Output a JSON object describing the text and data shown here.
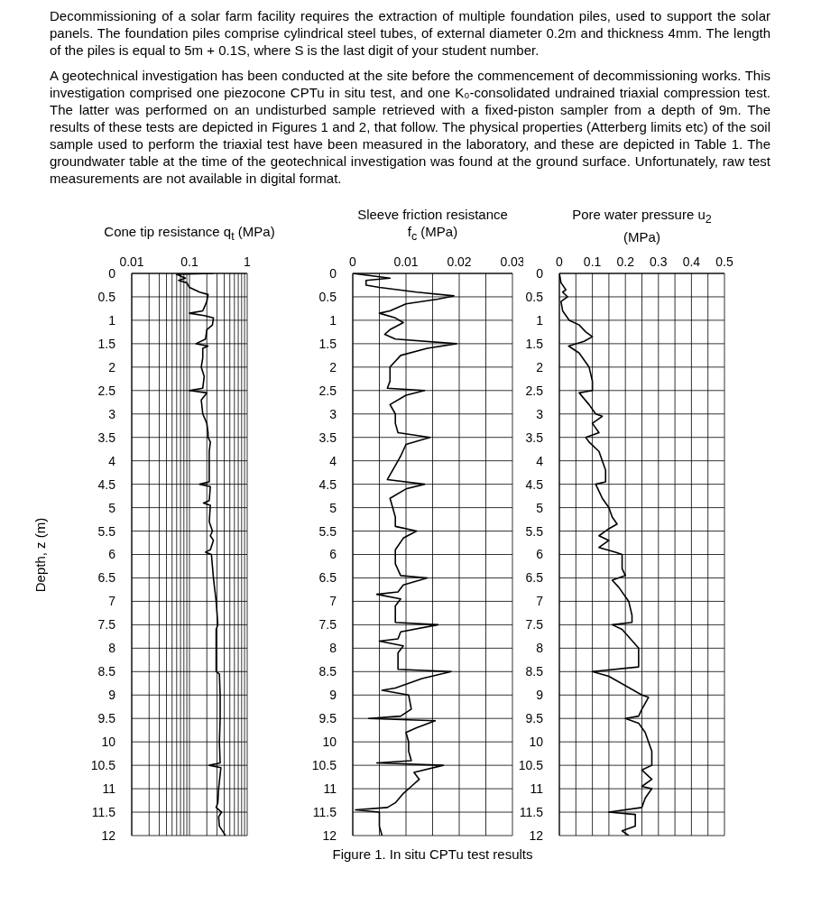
{
  "chart_data": [
    {
      "type": "line",
      "xlabel": "Cone tip resistance q$_{t}$ (MPa)",
      "ylabel": "Depth, z (m)",
      "log": "x",
      "grid": true,
      "marker": "none",
      "annotations": [
        "Decommissioning of a solar farm facility requires the extraction of multiple foundation piles, used to support the solar panels. The foundation piles comprise cylindrical steel tubes, of external diameter 0.2m and thickness 4mm. The length of the piles is equal to 5m + 0.1S, where S is the last digit of your student number.",
        "A geotechnical investigation has been conducted at the site before the commencement of decommissioning works. This investigation comprised one piezocone CPTu in situ test, and one K₀-consolidated undrained triaxial compression test. The latter was performed on an undisturbed sample retrieved with a fixed-piston sampler from a depth of 9m. The results of these tests are depicted in Figures 1 and 2, that follow. The physical properties (Atterberg limits etc) of the soil sample used to perform the triaxial test have been measured in the laboratory, and these are depicted in Table 1. The groundwater table at the time of the geotechnical investigation was found at the ground surface. Unfortunately, raw test measurements are not available in digital format."
      ],
      "xlim": [
        0.01,
        1
      ],
      "xticks": [
        0.01,
        {
          "value": 0.02,
          "label": null
        },
        {
          "value": 0.03,
          "label": null
        },
        {
          "value": 0.04,
          "label": null
        },
        {
          "value": 0.05,
          "label": null
        },
        {
          "value": 0.06,
          "label": null
        },
        {
          "value": 0.07,
          "label": null
        },
        {
          "value": 0.08,
          "label": null
        },
        {
          "value": 0.09,
          "label": null
        },
        0.1,
        {
          "value": 0.2,
          "label": null
        },
        {
          "value": 0.3,
          "label": null
        },
        {
          "value": 0.4,
          "label": null
        },
        {
          "value": 0.5,
          "label": null
        },
        {
          "value": 0.6,
          "label": null
        },
        {
          "value": 0.7,
          "label": null
        },
        {
          "value": 0.8,
          "label": null
        },
        {
          "value": 0.9,
          "label": null
        },
        1
      ],
      "ylim": [
        12,
        0
      ],
      "yticks": [
        0,
        0.5,
        1,
        1.5,
        2,
        2.5,
        3,
        3.5,
        4,
        4.5,
        5,
        5.5,
        6,
        6.5,
        7,
        7.5,
        8,
        8.5,
        9,
        9.5,
        10,
        10.5,
        11,
        11.5,
        12
      ],
      "series": [
        {
          "color": "#000000",
          "x": [
            0.26,
            0.06,
            0.085,
            0.065,
            0.09,
            0.1,
            0.15,
            0.21,
            0.2,
            0.17,
            0.1,
            0.18,
            0.26,
            0.25,
            0.2,
            0.19,
            0.13,
            0.21,
            0.17,
            0.17,
            0.16,
            0.18,
            0.17,
            0.1,
            0.2,
            0.16,
            0.17,
            0.2,
            0.21,
            0.21,
            0.23,
            0.22,
            0.22,
            0.22,
            0.15,
            0.23,
            0.22,
            0.175,
            0.23,
            0.22,
            0.25,
            0.23,
            0.26,
            0.23,
            0.19,
            0.24,
            0.26,
            0.29,
            0.31,
            0.29,
            0.29,
            0.29,
            0.33,
            0.34,
            0.34,
            0.33,
            0.34,
            0.22,
            0.35,
            0.32,
            0.31,
            0.29,
            0.36,
            0.32,
            0.33,
            0.42
          ],
          "values": [
            0,
            0.02,
            0.1,
            0.15,
            0.2,
            0.3,
            0.4,
            0.45,
            0.6,
            0.8,
            0.85,
            0.9,
            0.95,
            1.1,
            1.2,
            1.4,
            1.5,
            1.55,
            1.6,
            1.8,
            2,
            2.2,
            2.45,
            2.5,
            2.55,
            2.7,
            3,
            3.2,
            3.4,
            3.5,
            3.6,
            3.8,
            4,
            4.45,
            4.5,
            4.55,
            4.85,
            4.9,
            4.95,
            5.3,
            5.5,
            5.6,
            5.7,
            5.9,
            5.95,
            6,
            6.5,
            7,
            7.5,
            7.6,
            8,
            8.5,
            8.55,
            9,
            9.5,
            10,
            10.45,
            10.5,
            10.55,
            11,
            11.3,
            11.4,
            11.5,
            11.6,
            11.8,
            12
          ]
        }
      ]
    },
    {
      "type": "line",
      "xlabel": "Sleeve friction resistance f$_{c}$ (MPa)",
      "grid": true,
      "marker": "none",
      "annotations": [
        "Figure 1. In situ CPTu test results"
      ],
      "xlim": [
        0,
        0.03
      ],
      "xticks": [
        0,
        {
          "value": 0.005,
          "label": null
        },
        0.01,
        {
          "value": 0.015,
          "label": null
        },
        0.02,
        {
          "value": 0.025,
          "label": null
        },
        0.03
      ],
      "ylim": [
        12,
        0
      ],
      "yticks": [
        0,
        0.5,
        1,
        1.5,
        2,
        2.5,
        3,
        3.5,
        4,
        4.5,
        5,
        5.5,
        6,
        6.5,
        7,
        7.5,
        8,
        8.5,
        9,
        9.5,
        10,
        10.5,
        11,
        11.5,
        12
      ],
      "series": [
        {
          "color": "#000000",
          "x": [
            0,
            0.007,
            0.0025,
            0.0025,
            0.005,
            0.012,
            0.019,
            0.016,
            0.01,
            0.007,
            0.005,
            0.008,
            0.0095,
            0.007,
            0.006,
            0.008,
            0.0195,
            0.014,
            0.009,
            0.007,
            0.007,
            0.0065,
            0.0135,
            0.01,
            0.007,
            0.008,
            0.008,
            0.0085,
            0.0145,
            0.01,
            0.009,
            0.008,
            0.0065,
            0.0135,
            0.01,
            0.007,
            0.0075,
            0.008,
            0.008,
            0.012,
            0.0095,
            0.008,
            0.008,
            0.009,
            0.014,
            0.0095,
            0.0085,
            0.0045,
            0.009,
            0.008,
            0.008,
            0.016,
            0.009,
            0.0085,
            0.005,
            0.0095,
            0.0085,
            0.0085,
            0.0185,
            0.013,
            0.008,
            0.0055,
            0.0105,
            0.011,
            0.009,
            0.003,
            0.0155,
            0.012,
            0.01,
            0.0105,
            0.0105,
            0.011,
            0.0045,
            0.017,
            0.0115,
            0.0125,
            0.011,
            0.0095,
            0.008,
            0.0065,
            0.0005,
            0.005,
            0.005,
            0.0055
          ],
          "values": [
            0,
            0.1,
            0.15,
            0.25,
            0.3,
            0.4,
            0.48,
            0.55,
            0.65,
            0.8,
            0.85,
            0.95,
            1.05,
            1.2,
            1.3,
            1.4,
            1.5,
            1.6,
            1.75,
            2,
            2.3,
            2.45,
            2.5,
            2.6,
            2.8,
            3,
            3.2,
            3.4,
            3.5,
            3.65,
            3.9,
            4.1,
            4.4,
            4.5,
            4.6,
            4.8,
            5,
            5.2,
            5.4,
            5.5,
            5.65,
            5.9,
            6.2,
            6.45,
            6.5,
            6.65,
            6.8,
            6.85,
            6.95,
            7.1,
            7.45,
            7.5,
            7.65,
            7.8,
            7.85,
            7.95,
            8.1,
            8.45,
            8.5,
            8.65,
            8.85,
            8.9,
            9,
            9.3,
            9.45,
            9.5,
            9.55,
            9.7,
            9.8,
            10,
            10.2,
            10.4,
            10.45,
            10.5,
            10.65,
            10.8,
            10.95,
            11.1,
            11.3,
            11.4,
            11.45,
            11.5,
            11.8,
            12
          ]
        }
      ]
    },
    {
      "type": "line",
      "xlabel": "Pore water pressure u$_{2}$ (MPa)",
      "grid": true,
      "marker": "none",
      "xlim": [
        0,
        0.5
      ],
      "xticks": [
        0,
        {
          "value": 0.05,
          "label": null
        },
        0.1,
        {
          "value": 0.15,
          "label": null
        },
        0.2,
        {
          "value": 0.25,
          "label": null
        },
        0.3,
        {
          "value": 0.35,
          "label": null
        },
        0.4,
        {
          "value": 0.45,
          "label": null
        },
        0.5
      ],
      "ylim": [
        12,
        0
      ],
      "yticks": [
        0,
        0.5,
        1,
        1.5,
        2,
        2.5,
        3,
        3.5,
        4,
        4.5,
        5,
        5.5,
        6,
        6.5,
        7,
        7.5,
        8,
        8.5,
        9,
        9.5,
        10,
        10.5,
        11,
        11.5,
        12
      ],
      "series": [
        {
          "color": "#000000",
          "x": [
            0,
            0.005,
            0.02,
            0.01,
            0.025,
            0.005,
            0.01,
            0.03,
            0.06,
            0.08,
            0.1,
            0.075,
            0.028,
            0.06,
            0.09,
            0.1,
            0.1,
            0.06,
            0.09,
            0.11,
            0.13,
            0.1,
            0.12,
            0.08,
            0.09,
            0.12,
            0.13,
            0.14,
            0.14,
            0.11,
            0.13,
            0.15,
            0.16,
            0.175,
            0.15,
            0.12,
            0.15,
            0.12,
            0.17,
            0.19,
            0.19,
            0.2,
            0.16,
            0.18,
            0.21,
            0.22,
            0.22,
            0.16,
            0.19,
            0.24,
            0.24,
            0.24,
            0.1,
            0.15,
            0.25,
            0.27,
            0.25,
            0.24,
            0.2,
            0.24,
            0.26,
            0.27,
            0.28,
            0.28,
            0.25,
            0.28,
            0.25,
            0.28,
            0.26,
            0.25,
            0.15,
            0.23,
            0.23,
            0.19,
            0.21
          ],
          "values": [
            0,
            0.2,
            0.35,
            0.4,
            0.5,
            0.6,
            0.8,
            1,
            1.1,
            1.25,
            1.35,
            1.45,
            1.55,
            1.7,
            2,
            2.3,
            2.5,
            2.55,
            2.8,
            3,
            3.05,
            3.2,
            3.4,
            3.5,
            3.6,
            3.8,
            4,
            4.2,
            4.45,
            4.5,
            4.8,
            5,
            5.2,
            5.35,
            5.45,
            5.6,
            5.7,
            5.85,
            5.95,
            6,
            6.3,
            6.45,
            6.55,
            6.7,
            7,
            7.3,
            7.45,
            7.5,
            7.6,
            8,
            8.2,
            8.4,
            8.5,
            8.6,
            9,
            9.05,
            9.3,
            9.45,
            9.5,
            9.6,
            9.8,
            10,
            10.2,
            10.5,
            10.6,
            10.8,
            10.95,
            11,
            11.2,
            11.4,
            11.5,
            11.55,
            11.8,
            11.9,
            12
          ]
        }
      ]
    }
  ]
}
